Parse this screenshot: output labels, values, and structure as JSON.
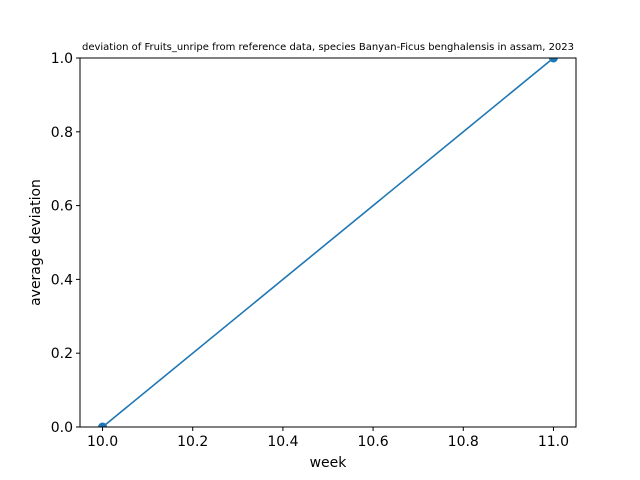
{
  "chart_data": {
    "type": "line",
    "title": "deviation of Fruits_unripe from reference data, species Banyan-Ficus benghalensis in assam, 2023",
    "xlabel": "week",
    "ylabel": "average deviation",
    "xlim": [
      9.95,
      11.05
    ],
    "ylim": [
      0.0,
      1.0
    ],
    "xticks": [
      10.0,
      10.2,
      10.4,
      10.6,
      10.8,
      11.0
    ],
    "xtick_labels": [
      "10.0",
      "10.2",
      "10.4",
      "10.6",
      "10.8",
      "11.0"
    ],
    "yticks": [
      0.0,
      0.2,
      0.4,
      0.6,
      0.8,
      1.0
    ],
    "ytick_labels": [
      "0.0",
      "0.2",
      "0.4",
      "0.6",
      "0.8",
      "1.0"
    ],
    "grid": false,
    "series": [
      {
        "x": [
          10,
          11
        ],
        "y": [
          0.0,
          1.0
        ],
        "color": "#1f77b4",
        "marker": "circle"
      }
    ]
  }
}
